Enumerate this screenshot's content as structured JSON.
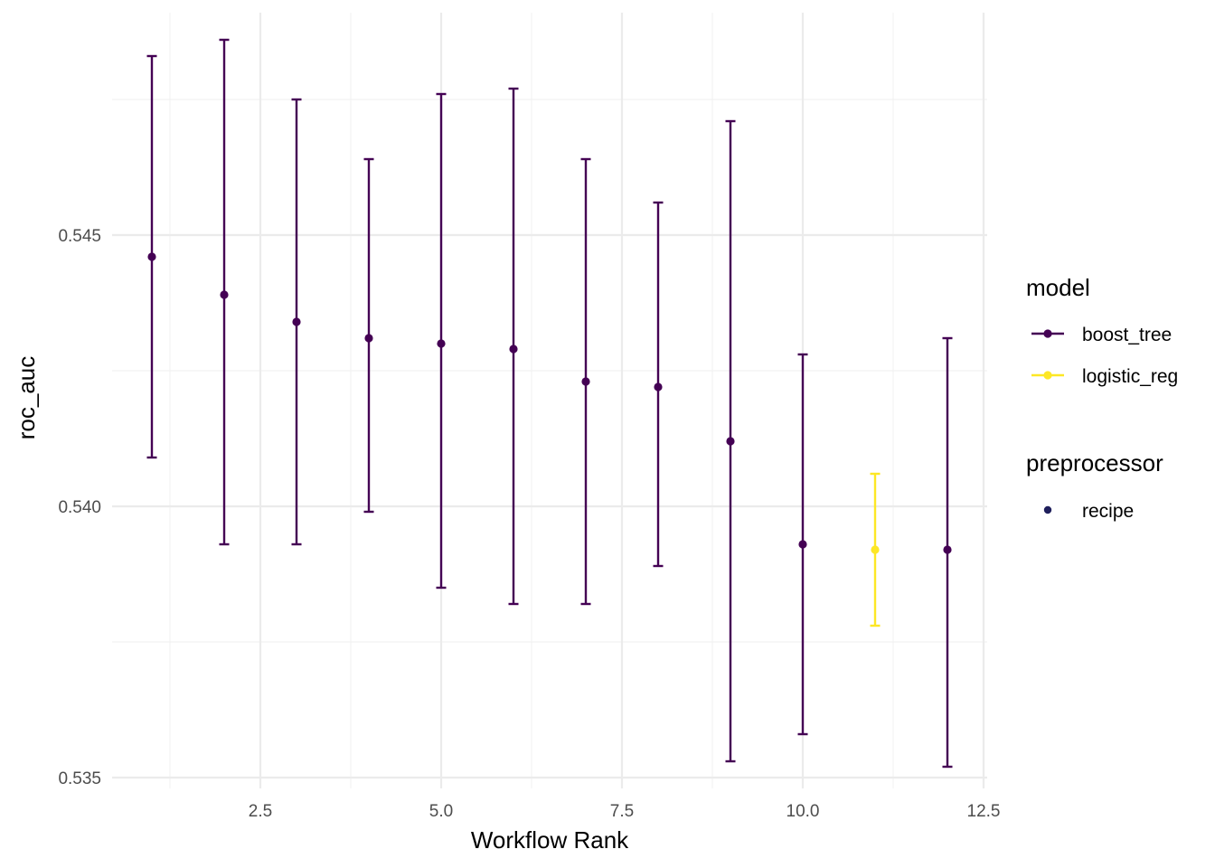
{
  "chart_data": {
    "type": "scatter",
    "title": "",
    "xlabel": "Workflow Rank",
    "ylabel": "roc_auc",
    "xlim": [
      0.45,
      12.55
    ],
    "ylim": [
      0.5348,
      0.5491
    ],
    "x_ticks": [
      2.5,
      5.0,
      7.5,
      10.0,
      12.5
    ],
    "x_tick_labels": [
      "2.5",
      "5.0",
      "7.5",
      "10.0",
      "12.5"
    ],
    "y_ticks": [
      0.535,
      0.54,
      0.545
    ],
    "y_tick_labels": [
      "0.535",
      "0.540",
      "0.545"
    ],
    "grid": true,
    "legend_position": "right",
    "points": [
      {
        "rank": 1,
        "model": "boost_tree",
        "preprocessor": "recipe",
        "mean": 0.5446,
        "lower": 0.5409,
        "upper": 0.5483
      },
      {
        "rank": 2,
        "model": "boost_tree",
        "preprocessor": "recipe",
        "mean": 0.5439,
        "lower": 0.5393,
        "upper": 0.5486
      },
      {
        "rank": 3,
        "model": "boost_tree",
        "preprocessor": "recipe",
        "mean": 0.5434,
        "lower": 0.5393,
        "upper": 0.5475
      },
      {
        "rank": 4,
        "model": "boost_tree",
        "preprocessor": "recipe",
        "mean": 0.5431,
        "lower": 0.5399,
        "upper": 0.5464
      },
      {
        "rank": 5,
        "model": "boost_tree",
        "preprocessor": "recipe",
        "mean": 0.543,
        "lower": 0.5385,
        "upper": 0.5476
      },
      {
        "rank": 6,
        "model": "boost_tree",
        "preprocessor": "recipe",
        "mean": 0.5429,
        "lower": 0.5382,
        "upper": 0.5477
      },
      {
        "rank": 7,
        "model": "boost_tree",
        "preprocessor": "recipe",
        "mean": 0.5423,
        "lower": 0.5382,
        "upper": 0.5464
      },
      {
        "rank": 8,
        "model": "boost_tree",
        "preprocessor": "recipe",
        "mean": 0.5422,
        "lower": 0.5389,
        "upper": 0.5456
      },
      {
        "rank": 9,
        "model": "boost_tree",
        "preprocessor": "recipe",
        "mean": 0.5412,
        "lower": 0.5353,
        "upper": 0.5471
      },
      {
        "rank": 10,
        "model": "boost_tree",
        "preprocessor": "recipe",
        "mean": 0.5393,
        "lower": 0.5358,
        "upper": 0.5428
      },
      {
        "rank": 11,
        "model": "logistic_reg",
        "preprocessor": "recipe",
        "mean": 0.5392,
        "lower": 0.5378,
        "upper": 0.5406
      },
      {
        "rank": 12,
        "model": "boost_tree",
        "preprocessor": "recipe",
        "mean": 0.5392,
        "lower": 0.5352,
        "upper": 0.5431
      }
    ],
    "legend": {
      "model": {
        "title": "model",
        "entries": [
          {
            "label": "boost_tree",
            "color": "#440154"
          },
          {
            "label": "logistic_reg",
            "color": "#fde725"
          }
        ]
      },
      "preprocessor": {
        "title": "preprocessor",
        "entries": [
          {
            "label": "recipe",
            "color": "#1f1f5c"
          }
        ]
      }
    }
  }
}
